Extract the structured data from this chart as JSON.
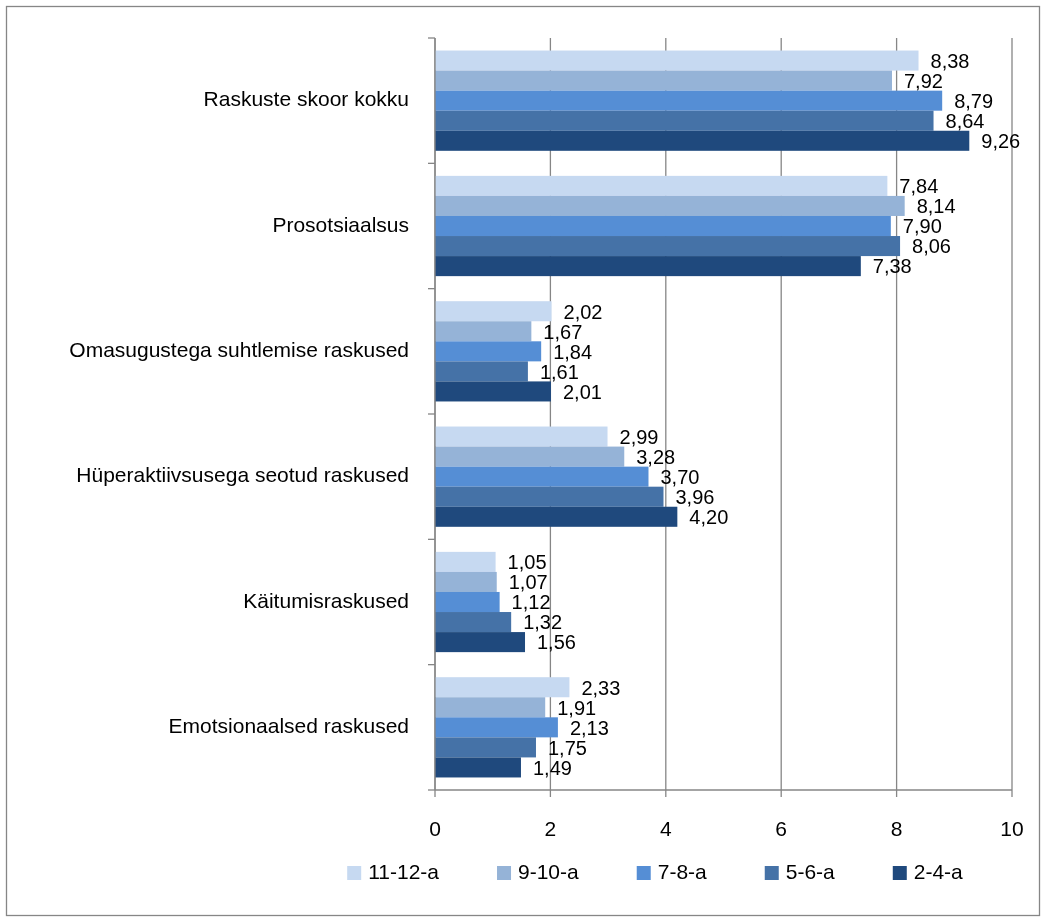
{
  "chart_data": {
    "type": "bar",
    "orientation": "horizontal",
    "categories": [
      "Raskuste skoor kokku",
      "Prosotsiaalsus",
      "Omasugustega suhtlemise raskused",
      "Hüperaktiivsusega seotud raskused",
      "Käitumisraskused",
      "Emotsionaalsed raskused"
    ],
    "series": [
      {
        "name": "11-12-a",
        "color": "#c6d9f1",
        "values": [
          8.38,
          7.84,
          2.02,
          2.99,
          1.05,
          2.33
        ],
        "value_labels": [
          "8,38",
          "7,84",
          "2,02",
          "2,99",
          "1,05",
          "2,33"
        ]
      },
      {
        "name": "9-10-a",
        "color": "#95b3d7",
        "values": [
          7.92,
          8.14,
          1.67,
          3.28,
          1.07,
          1.91
        ],
        "value_labels": [
          "7,92",
          "8,14",
          "1,67",
          "3,28",
          "1,07",
          "1,91"
        ]
      },
      {
        "name": "7-8-a",
        "color": "#558ed5",
        "values": [
          8.79,
          7.9,
          1.84,
          3.7,
          1.12,
          2.13
        ],
        "value_labels": [
          "8,79",
          "7,90",
          "1,84",
          "3,70",
          "1,12",
          "2,13"
        ]
      },
      {
        "name": "5-6-a",
        "color": "#4572a7",
        "values": [
          8.64,
          8.06,
          1.61,
          3.96,
          1.32,
          1.75
        ],
        "value_labels": [
          "8,64",
          "8,06",
          "1,61",
          "3,96",
          "1,32",
          "1,75"
        ]
      },
      {
        "name": "2-4-a",
        "color": "#1f497d",
        "values": [
          9.26,
          7.38,
          2.01,
          4.2,
          1.56,
          1.49
        ],
        "value_labels": [
          "9,26",
          "7,38",
          "2,01",
          "4,20",
          "1,56",
          "1,49"
        ]
      }
    ],
    "xlim": [
      0,
      10
    ],
    "xticks": [
      0,
      2,
      4,
      6,
      8,
      10
    ],
    "grid": "x",
    "legend": "bottom"
  }
}
